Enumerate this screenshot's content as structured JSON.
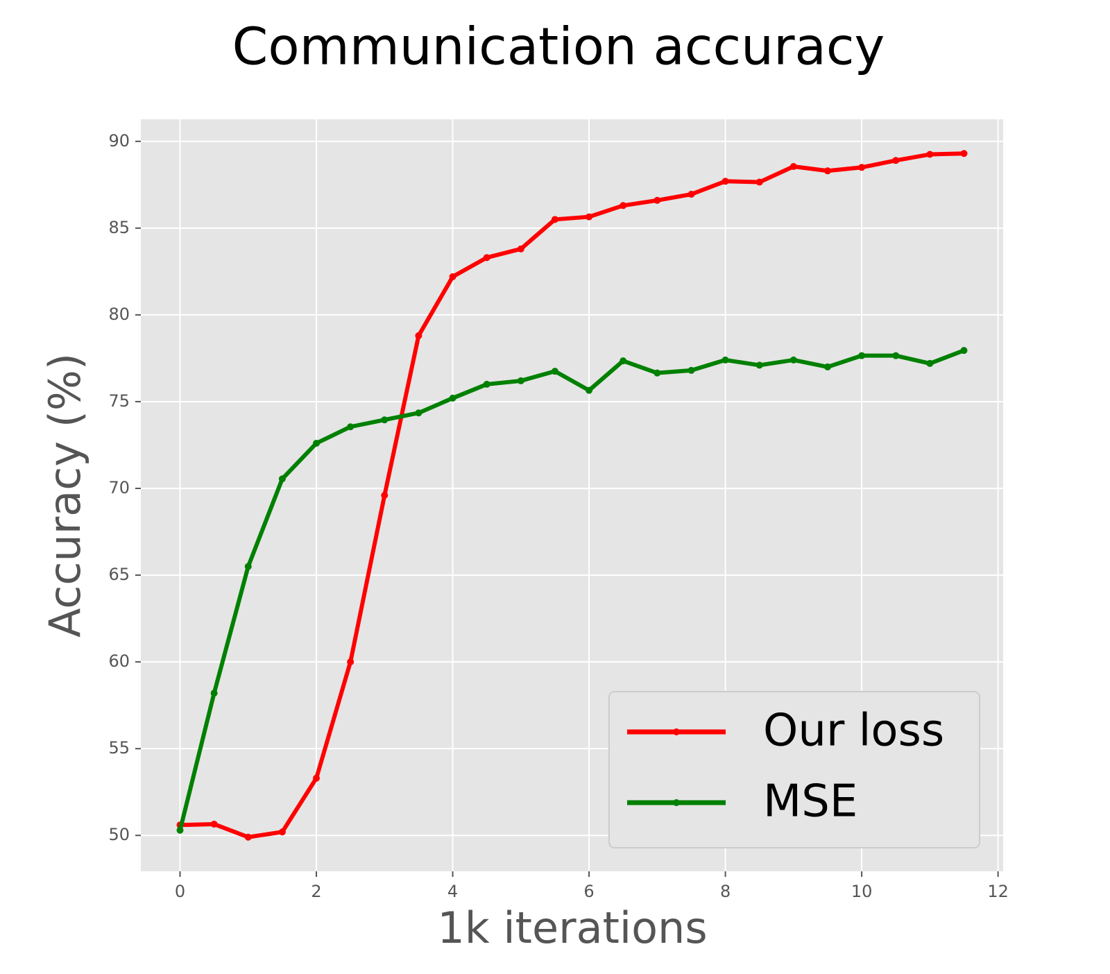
{
  "chart_data": {
    "type": "line",
    "title": "Communication accuracy",
    "xlabel": "1k iterations",
    "ylabel": "Accuracy (%)",
    "x": [
      0,
      0.5,
      1,
      1.5,
      2,
      2.5,
      3,
      3.5,
      4,
      4.5,
      5,
      5.5,
      6,
      6.5,
      7,
      7.5,
      8,
      8.5,
      9,
      9.5,
      10,
      10.5,
      11,
      11.5
    ],
    "series": [
      {
        "name": "Our loss",
        "color": "#ff0000",
        "values": [
          50.6,
          50.65,
          49.9,
          50.2,
          53.3,
          60.0,
          69.6,
          78.8,
          82.2,
          83.3,
          83.8,
          85.5,
          85.65,
          86.3,
          86.6,
          86.95,
          87.7,
          87.65,
          88.55,
          88.3,
          88.5,
          88.9,
          89.25,
          89.3
        ]
      },
      {
        "name": "MSE",
        "color": "#008000",
        "values": [
          50.3,
          58.2,
          65.5,
          70.55,
          72.6,
          73.55,
          73.95,
          74.35,
          75.2,
          76.0,
          76.2,
          76.75,
          75.65,
          77.35,
          76.65,
          76.8,
          77.4,
          77.1,
          77.4,
          77.0,
          77.65,
          77.65,
          77.2,
          77.95
        ]
      }
    ],
    "xlim": [
      -0.575,
      12.075
    ],
    "ylim": [
      47.93,
      91.27
    ],
    "xticks": [
      0,
      2,
      4,
      6,
      8,
      10,
      12
    ],
    "yticks": [
      50,
      55,
      60,
      65,
      70,
      75,
      80,
      85,
      90
    ],
    "grid": true,
    "legend": "lower right"
  }
}
